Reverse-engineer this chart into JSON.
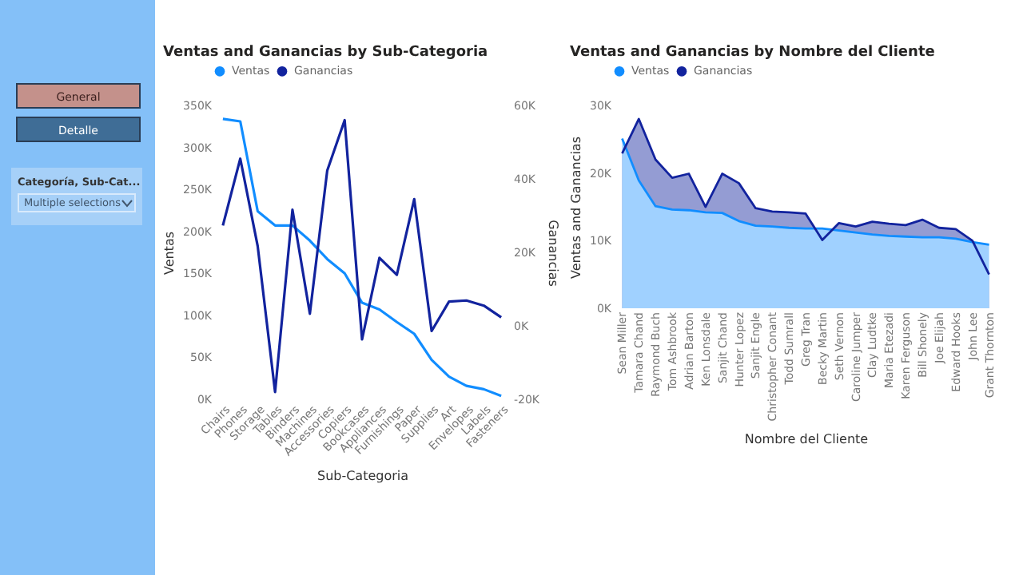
{
  "chart_data": [
    {
      "type": "other",
      "annotations": [
        "General",
        "Detalle",
        "Categoría, Sub-Cat...",
        "Multiple selections"
      ]
    },
    {
      "type": "line",
      "title": "Ventas and Ganancias by Sub-Categoria",
      "xlabel": "Sub-Categoria",
      "ylabel": "Ventas",
      "y2label": "Ganancias",
      "legend": "top left",
      "categories": [
        "Chairs",
        "Phones",
        "Storage",
        "Tables",
        "Binders",
        "Machines",
        "Accessories",
        "Copiers",
        "Bookcases",
        "Appliances",
        "Furnishings",
        "Paper",
        "Supplies",
        "Art",
        "Envelopes",
        "Labels",
        "Fasteners"
      ],
      "series": [
        {
          "name": "Ventas",
          "color": "#118dff",
          "values": [
            334000,
            331000,
            224000,
            207000,
            207000,
            189000,
            167000,
            150000,
            115000,
            107000,
            92000,
            78000,
            47000,
            27000,
            16000,
            12000,
            4000
          ]
        },
        {
          "name": "Ganancias",
          "color": "#12239e",
          "axis": "y2",
          "values": [
            27300,
            45500,
            21700,
            -18000,
            31600,
            3300,
            42300,
            56000,
            -3700,
            18500,
            13900,
            34500,
            -1400,
            6600,
            6900,
            5500,
            2300
          ]
        }
      ],
      "ylim": [
        0,
        350000
      ],
      "yticks": [
        {
          "value": 0,
          "label": "0K"
        },
        {
          "value": 50000,
          "label": "50K"
        },
        {
          "value": 100000,
          "label": "100K"
        },
        {
          "value": 150000,
          "label": "150K"
        },
        {
          "value": 200000,
          "label": "200K"
        },
        {
          "value": 250000,
          "label": "250K"
        },
        {
          "value": 300000,
          "label": "300K"
        },
        {
          "value": 350000,
          "label": "350K"
        }
      ],
      "y2lim": [
        -20000,
        60000
      ],
      "y2ticks": [
        {
          "value": -20000,
          "label": "-20K"
        },
        {
          "value": 0,
          "label": "0K"
        },
        {
          "value": 20000,
          "label": "20K"
        },
        {
          "value": 40000,
          "label": "40K"
        },
        {
          "value": 60000,
          "label": "60K"
        }
      ]
    },
    {
      "type": "area",
      "title": "Ventas and Ganancias by Nombre del Cliente",
      "xlabel": "Nombre del Cliente",
      "ylabel": "Ventas and Ganancias",
      "legend": "top left",
      "categories": [
        "Sean Miller",
        "Tamara Chand",
        "Raymond Buch",
        "Tom Ashbrook",
        "Adrian Barton",
        "Ken Lonsdale",
        "Sanjit Chand",
        "Hunter Lopez",
        "Sanjit Engle",
        "Christopher Conant",
        "Todd Sumrall",
        "Greg Tran",
        "Becky Martin",
        "Seth Vernon",
        "Caroline Jumper",
        "Clay Ludtke",
        "Maria Etezadi",
        "Karen Ferguson",
        "Bill Shonely",
        "Joe Elijah",
        "Edward Hooks",
        "John Lee",
        "Grant Thornton"
      ],
      "series": [
        {
          "name": "Ventas",
          "color": "#118dff",
          "values": [
            25100,
            18900,
            15100,
            14600,
            14500,
            14200,
            14100,
            12900,
            12200,
            12100,
            11900,
            11800,
            11800,
            11500,
            11200,
            10900,
            10700,
            10600,
            10500,
            10500,
            10300,
            9800,
            9400
          ]
        },
        {
          "name": "Ganancias",
          "color": "#12239e",
          "values": [
            22900,
            28000,
            22000,
            19300,
            19900,
            15000,
            19900,
            18500,
            14800,
            14300,
            14200,
            14000,
            10100,
            12600,
            12100,
            12800,
            12500,
            12300,
            13100,
            11900,
            11700,
            10000,
            5000
          ]
        }
      ],
      "ylim": [
        0,
        30000
      ],
      "yticks": [
        {
          "value": 0,
          "label": "0K"
        },
        {
          "value": 10000,
          "label": "10K"
        },
        {
          "value": 20000,
          "label": "20K"
        },
        {
          "value": 30000,
          "label": "30K"
        }
      ]
    }
  ]
}
